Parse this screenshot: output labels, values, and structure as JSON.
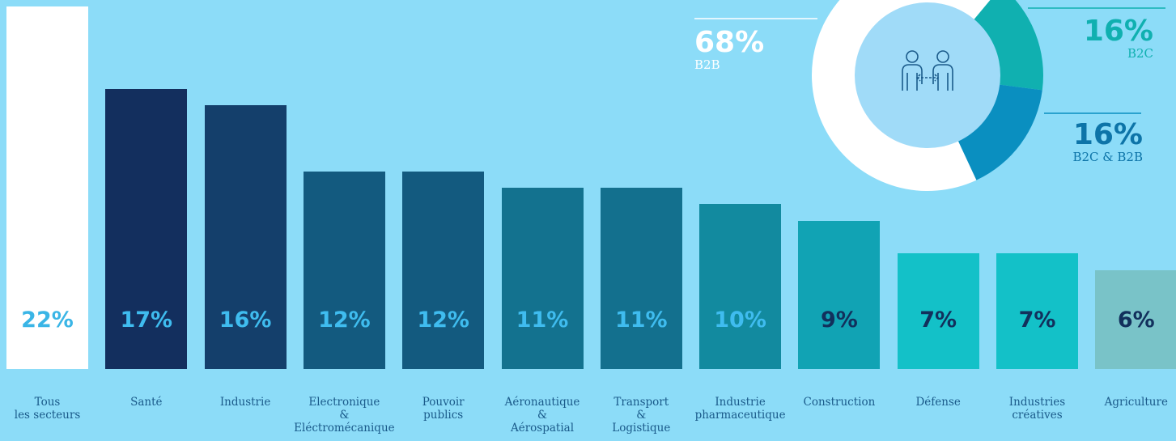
{
  "chart_data": [
    {
      "type": "bar",
      "categories": [
        "Tous\nles secteurs",
        "Santé",
        "Industrie",
        "Electronique\n&\nEléctromécanique",
        "Pouvoir\npublics",
        "Aéronautique\n&\nAérospatial",
        "Transport\n&\nLogistique",
        "Industrie\npharmaceutique",
        "Construction",
        "Défense",
        "Industries\ncréatives",
        "Agriculture"
      ],
      "values": [
        22,
        17,
        16,
        12,
        12,
        11,
        11,
        10,
        9,
        7,
        7,
        6
      ],
      "value_labels": [
        "22%",
        "17%",
        "16%",
        "12%",
        "12%",
        "11%",
        "11%",
        "10%",
        "9%",
        "7%",
        "7%",
        "6%"
      ],
      "colors": [
        "#ffffff",
        "#132f5e",
        "#143f6b",
        "#135a7f",
        "#135a7f",
        "#13728f",
        "#13708e",
        "#128a9f",
        "#11a3b4",
        "#13c1c8",
        "#13c1c8",
        "#79c3c8"
      ]
    },
    {
      "type": "donut",
      "categories": [
        "B2B",
        "B2C",
        "B2C & B2B"
      ],
      "values": [
        68,
        16,
        16
      ],
      "value_labels": [
        "68%",
        "16%",
        "16%"
      ],
      "colors": [
        "#ffffff",
        "#10b0b0",
        "#0a8fc0"
      ]
    }
  ]
}
